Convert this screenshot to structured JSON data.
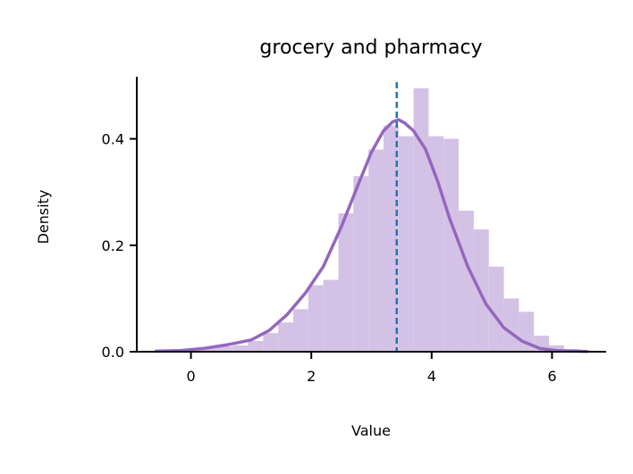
{
  "chart_data": {
    "type": "histogram",
    "title": "grocery and pharmacy",
    "xlabel": "Value",
    "ylabel": "Density",
    "xlim": [
      -0.9,
      6.9
    ],
    "ylim": [
      0,
      0.52
    ],
    "x_ticks": [
      0,
      2,
      4,
      6
    ],
    "y_ticks": [
      0.0,
      0.2,
      0.4
    ],
    "x_tick_labels": [
      "0",
      "2",
      "4",
      "6"
    ],
    "y_tick_labels": [
      "0.0",
      "0.2",
      "0.4"
    ],
    "colors": {
      "histogram_fill": "#d4c2e6",
      "kde_line": "#9467bd",
      "mean_line": "#1f77b4",
      "axis": "#000000"
    },
    "histogram": {
      "bin_edges": [
        -0.55,
        -0.3,
        -0.05,
        0.2,
        0.45,
        0.7,
        0.95,
        1.2,
        1.45,
        1.7,
        1.95,
        2.2,
        2.45,
        2.7,
        2.95,
        3.2,
        3.45,
        3.7,
        3.95,
        4.2,
        4.45,
        4.7,
        4.95,
        5.2,
        5.45,
        5.7,
        5.95,
        6.2,
        6.45,
        6.6
      ],
      "densities": [
        0.003,
        0.004,
        0.006,
        0.008,
        0.01,
        0.012,
        0.02,
        0.035,
        0.055,
        0.08,
        0.125,
        0.135,
        0.26,
        0.33,
        0.38,
        0.425,
        0.405,
        0.495,
        0.405,
        0.4,
        0.265,
        0.23,
        0.16,
        0.1,
        0.075,
        0.03,
        0.012,
        0.005,
        0.003
      ]
    },
    "kde": {
      "x": [
        -0.6,
        -0.2,
        0.2,
        0.6,
        1.0,
        1.3,
        1.6,
        1.9,
        2.2,
        2.5,
        2.8,
        3.0,
        3.2,
        3.35,
        3.45,
        3.55,
        3.7,
        3.9,
        4.1,
        4.3,
        4.6,
        4.9,
        5.2,
        5.5,
        5.8,
        6.1,
        6.4,
        6.6
      ],
      "y": [
        0.001,
        0.002,
        0.006,
        0.013,
        0.022,
        0.04,
        0.07,
        0.11,
        0.16,
        0.235,
        0.32,
        0.375,
        0.415,
        0.432,
        0.436,
        0.43,
        0.415,
        0.38,
        0.32,
        0.25,
        0.16,
        0.09,
        0.045,
        0.02,
        0.006,
        0.002,
        0.001,
        0.0005
      ]
    },
    "mean": 3.42
  }
}
